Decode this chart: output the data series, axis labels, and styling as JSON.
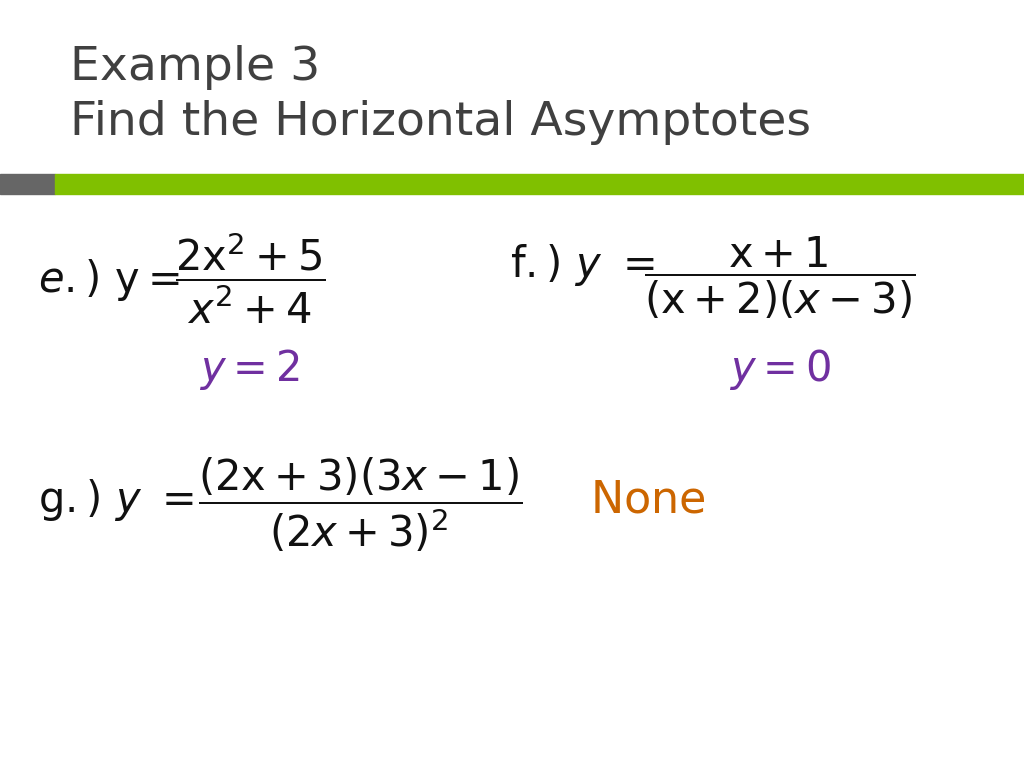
{
  "title_line1": "Example 3",
  "title_line2": "Find the Horizontal Asymptotes",
  "title_color": "#404040",
  "title_fontsize": 34,
  "bar_left_color": "#666666",
  "bar_right_color": "#80c000",
  "label_color": "#111111",
  "answer_color": "#7030a0",
  "none_color": "#cc6600",
  "bg_color": "#ffffff"
}
